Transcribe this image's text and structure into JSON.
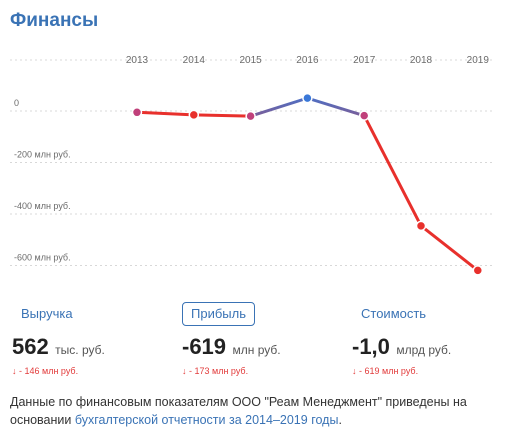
{
  "header": {
    "title": "Финансы"
  },
  "chart_data": {
    "type": "line",
    "x": [
      "2013",
      "2014",
      "2015",
      "2016",
      "2017",
      "2018",
      "2019"
    ],
    "series": [
      {
        "values": [
          -5,
          -15,
          -20,
          50,
          -18,
          -446,
          -619
        ]
      }
    ],
    "y_ticks": [
      {
        "value": 0,
        "label": "0"
      },
      {
        "value": -200,
        "label": "-200 млн руб."
      },
      {
        "value": -400,
        "label": "-400 млн руб."
      },
      {
        "value": -600,
        "label": "-600 млн руб."
      }
    ],
    "ylim": [
      -650,
      120
    ],
    "grid": "dotted",
    "colors": {
      "negative": "#e8302c",
      "positive": "#3a78d8"
    }
  },
  "metrics": [
    {
      "label": "Выручка",
      "value": "562",
      "unit": "тыс. руб.",
      "delta": "↓ - 146 млн руб.",
      "active": false
    },
    {
      "label": "Прибыль",
      "value": "-619",
      "unit": "млн руб.",
      "delta": "↓ - 173 млн руб.",
      "active": true
    },
    {
      "label": "Стоимость",
      "value": "-1,0",
      "unit": "млрд руб.",
      "delta": "↓ - 619 млн руб.",
      "active": false
    }
  ],
  "footnote": {
    "text_before": "Данные по финансовым показателям ООО \"Реам Менеджмент\" приведены на основании ",
    "link": "бухгалтерской отчетности за 2014–2019 годы",
    "text_after": "."
  }
}
